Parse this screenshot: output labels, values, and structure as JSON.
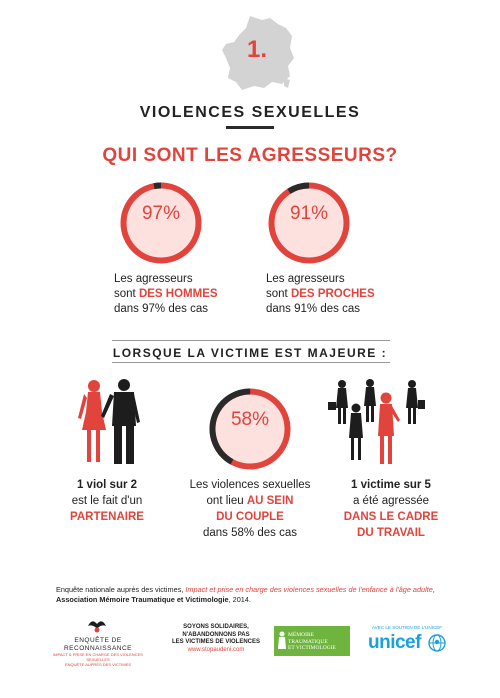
{
  "header": {
    "number": "1.",
    "section_title": "VIOLENCES SEXUELLES",
    "question": "QUI SONT LES AGRESSEURS?"
  },
  "stats_top": [
    {
      "percent_label": "97%",
      "percent_value": 97,
      "line1": "Les agresseurs",
      "line2_prefix": "sont ",
      "line2_highlight": "DES HOMMES",
      "line3": "dans 97% des cas"
    },
    {
      "percent_label": "91%",
      "percent_value": 91,
      "line1": "Les agresseurs",
      "line2_prefix": "sont ",
      "line2_highlight": "DES PROCHES",
      "line3": "dans 91% des cas"
    }
  ],
  "subsection_title": "LORSQUE LA VICTIME EST MAJEURE :",
  "stats_bottom": {
    "left": {
      "line1": "1 viol sur 2",
      "line2": "est le fait d'un",
      "highlight": "PARTENAIRE"
    },
    "center": {
      "percent_label": "58%",
      "percent_value": 58,
      "line1": "Les violences sexuelles",
      "line2_prefix": "ont lieu ",
      "line2_highlight": "AU SEIN",
      "line3_highlight": "DU COUPLE",
      "line4": "dans 58% des cas"
    },
    "right": {
      "line1": "1 victime sur 5",
      "line2": "a été agressée",
      "highlight1": "DANS LE CADRE",
      "highlight2": "DU TRAVAIL"
    }
  },
  "footer": {
    "source_prefix": "Enquête nationale auprès des victimes, ",
    "source_italic": "Impact et prise en charge des violences sexuelles de l'enfance à l'âge adulte",
    "source_suffix": ",",
    "source_line2_bold": "Association Mémoire Traumatique et Victimologie",
    "source_line2_rest": ", 2014.",
    "logo1_title": "ENQUÊTE DE RECONNAISSANCE",
    "logo1_sub1": "IMPACT & PRISE EN CHARGE DES VIOLENCES SEXUELLES",
    "logo1_sub2": "ENQUÊTE AUPRÈS DES VICTIMES",
    "logo2_line1": "SOYONS SOLIDAIRES,",
    "logo2_line2": "N'ABANDONNONS PAS",
    "logo2_line3": "LES VICTIMES DE VIOLENCES",
    "logo2_url": "www.stopaudeni.com",
    "logo3_line1": "MÉMOIRE",
    "logo3_line2": "TRAUMATIQUE",
    "logo3_line3": "ET VICTIMOLOGIE",
    "logo4_caption": "AVEC LE SOUTIEN DE L'UNICEF",
    "logo4_name": "unicef"
  },
  "colors": {
    "accent": "#e0443c",
    "circle_fill": "#fde1df",
    "gap": "#2a2a2a",
    "logo_green": "#6fb43f",
    "unicef_blue": "#1ca0dc"
  },
  "icons": [
    "france-map-icon",
    "couple-silhouette-icon",
    "women-silhouettes-icon",
    "globe-icon"
  ]
}
